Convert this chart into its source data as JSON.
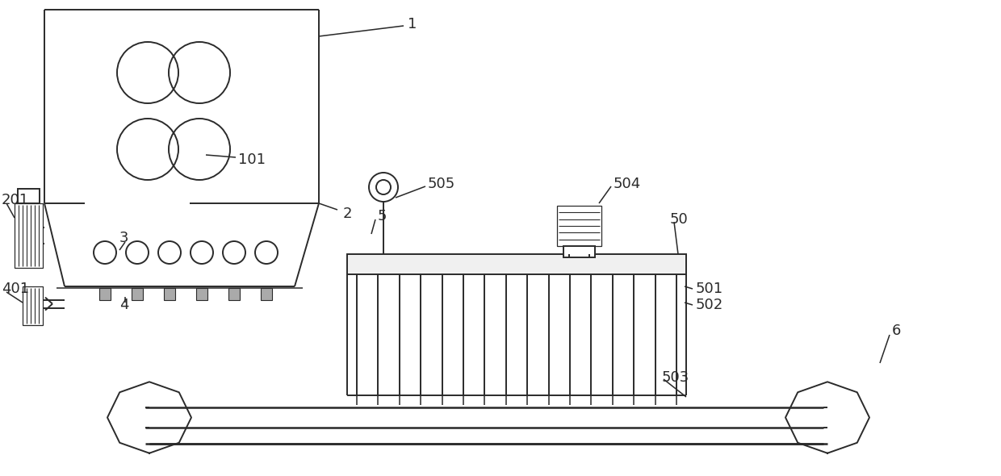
{
  "bg_color": "#ffffff",
  "line_color": "#2a2a2a",
  "lw": 1.4,
  "fig_width": 12.4,
  "fig_height": 5.9
}
